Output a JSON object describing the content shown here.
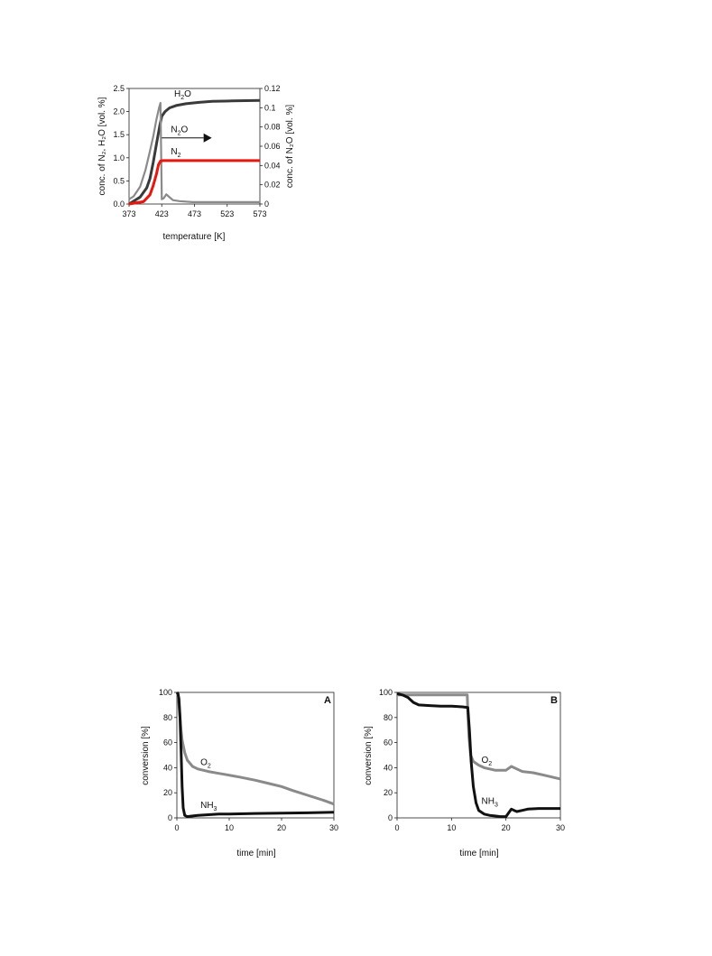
{
  "chart_data": [
    {
      "id": "top",
      "type": "line",
      "title": "",
      "xlabel": "temperature [K]",
      "ylabel_left": "conc. of N₂, H₂O [vol. %]",
      "ylabel_right": "conc. of N₂O [vol. %]",
      "xlim": [
        373,
        573
      ],
      "ylim_left": [
        0,
        2.5
      ],
      "ylim_right": [
        0,
        0.12
      ],
      "xticks": [
        "373",
        "423",
        "473",
        "523",
        "573"
      ],
      "yticks_left": [
        "0.0",
        "0.5",
        "1.0",
        "1.5",
        "2.0",
        "2.5"
      ],
      "yticks_right": [
        "0",
        "0.02",
        "0.04",
        "0.06",
        "0.08",
        "0.1",
        "0.12"
      ],
      "grid": false,
      "series": [
        {
          "name": "H₂O",
          "axis": "left",
          "color": "#3a3a3a",
          "x": [
            373,
            390,
            400,
            405,
            410,
            415,
            420,
            423,
            428,
            435,
            445,
            460,
            480,
            500,
            530,
            573
          ],
          "y": [
            0.0,
            0.15,
            0.35,
            0.55,
            0.9,
            1.3,
            1.7,
            1.9,
            2.0,
            2.08,
            2.13,
            2.17,
            2.2,
            2.22,
            2.23,
            2.24
          ]
        },
        {
          "name": "N₂O",
          "axis": "right",
          "color": "#8a8a8a",
          "x": [
            373,
            380,
            390,
            398,
            405,
            410,
            415,
            419,
            421,
            423,
            426,
            430,
            435,
            440,
            450,
            470,
            500,
            573
          ],
          "y": [
            0.005,
            0.008,
            0.018,
            0.035,
            0.055,
            0.07,
            0.088,
            0.1,
            0.105,
            0.005,
            0.006,
            0.01,
            0.007,
            0.004,
            0.003,
            0.002,
            0.002,
            0.002
          ]
        },
        {
          "name": "N₂",
          "axis": "left",
          "color": "#e8160c",
          "x": [
            373,
            395,
            405,
            410,
            415,
            418,
            421,
            425,
            440,
            460,
            500,
            573
          ],
          "y": [
            0.0,
            0.05,
            0.2,
            0.4,
            0.65,
            0.85,
            0.93,
            0.94,
            0.94,
            0.94,
            0.94,
            0.94
          ]
        }
      ],
      "annotations": [
        {
          "text": "H",
          "sub": "2",
          "text2": "O",
          "x": 442,
          "y": 2.32,
          "axis": "left"
        },
        {
          "text": "N",
          "sub": "2",
          "text2": "O",
          "x": 437,
          "y": 1.55,
          "axis": "left"
        },
        {
          "text": "N",
          "sub": "2",
          "text2": "",
          "x": 437,
          "y": 1.07,
          "axis": "left"
        }
      ]
    },
    {
      "id": "A",
      "type": "line",
      "title": "",
      "panel_label": "A",
      "xlabel": "time [min]",
      "ylabel": "conversion [%]",
      "xlim": [
        0,
        30
      ],
      "ylim": [
        0,
        100
      ],
      "xticks": [
        "0",
        "10",
        "20",
        "30"
      ],
      "yticks": [
        "0",
        "20",
        "40",
        "60",
        "80",
        "100"
      ],
      "grid": false,
      "series": [
        {
          "name": "O₂",
          "color": "#8a8a8a",
          "x": [
            0,
            0.2,
            0.4,
            0.6,
            0.8,
            1.0,
            1.5,
            2,
            3,
            4,
            6,
            8,
            10,
            12,
            15,
            18,
            20,
            22,
            25,
            28,
            30
          ],
          "y": [
            100,
            99,
            90,
            80,
            70,
            62,
            52,
            46,
            41,
            39,
            37,
            35.5,
            34,
            32.5,
            30,
            27,
            25,
            22,
            18,
            14,
            11
          ]
        },
        {
          "name": "NH₃",
          "color": "#111111",
          "x": [
            0,
            0.2,
            0.4,
            0.6,
            0.8,
            1.0,
            1.2,
            1.5,
            2,
            3,
            4,
            6,
            8,
            10,
            15,
            20,
            25,
            30
          ],
          "y": [
            100,
            99,
            95,
            80,
            55,
            25,
            8,
            2,
            1,
            1.5,
            2,
            2.5,
            3,
            3,
            3.5,
            3.8,
            4,
            4.5
          ]
        }
      ],
      "annotations": [
        {
          "text": "O",
          "sub": "2",
          "text2": "",
          "x": 4.5,
          "y": 42
        },
        {
          "text": "NH",
          "sub": "3",
          "text2": "",
          "x": 4.5,
          "y": 8
        }
      ]
    },
    {
      "id": "B",
      "type": "line",
      "title": "",
      "panel_label": "B",
      "xlabel": "time [min]",
      "ylabel": "conversion [%]",
      "xlim": [
        0,
        30
      ],
      "ylim": [
        0,
        100
      ],
      "xticks": [
        "0",
        "10",
        "20",
        "30"
      ],
      "yticks": [
        "0",
        "20",
        "40",
        "60",
        "80",
        "100"
      ],
      "grid": false,
      "series": [
        {
          "name": "O₂",
          "color": "#8a8a8a",
          "x": [
            0,
            2,
            5,
            8,
            11,
            12.9,
            13.0,
            13.2,
            13.5,
            14,
            15,
            16,
            18,
            20,
            21,
            22,
            23,
            25,
            27,
            30
          ],
          "y": [
            98,
            98,
            98,
            98,
            98,
            98,
            85,
            65,
            50,
            45,
            42,
            40,
            38,
            38,
            41,
            39,
            37,
            36,
            34,
            31
          ]
        },
        {
          "name": "NH₃",
          "color": "#111111",
          "x": [
            0,
            1,
            2,
            3,
            4,
            6,
            8,
            10,
            12,
            13,
            13.3,
            13.6,
            14,
            14.5,
            15,
            16,
            17,
            18,
            19,
            20,
            20.5,
            21,
            21.5,
            22,
            23,
            24,
            26,
            28,
            30
          ],
          "y": [
            99,
            98,
            96,
            92,
            90,
            89.5,
            89,
            89,
            88.5,
            88,
            70,
            45,
            25,
            12,
            6,
            3,
            2,
            1.5,
            1,
            1,
            4,
            7,
            6,
            5,
            6,
            7,
            7.5,
            7.5,
            7.5
          ]
        }
      ],
      "annotations": [
        {
          "text": "O",
          "sub": "2",
          "text2": "",
          "x": 15.5,
          "y": 44
        },
        {
          "text": "NH",
          "sub": "3",
          "text2": "",
          "x": 15.5,
          "y": 11
        }
      ]
    }
  ]
}
